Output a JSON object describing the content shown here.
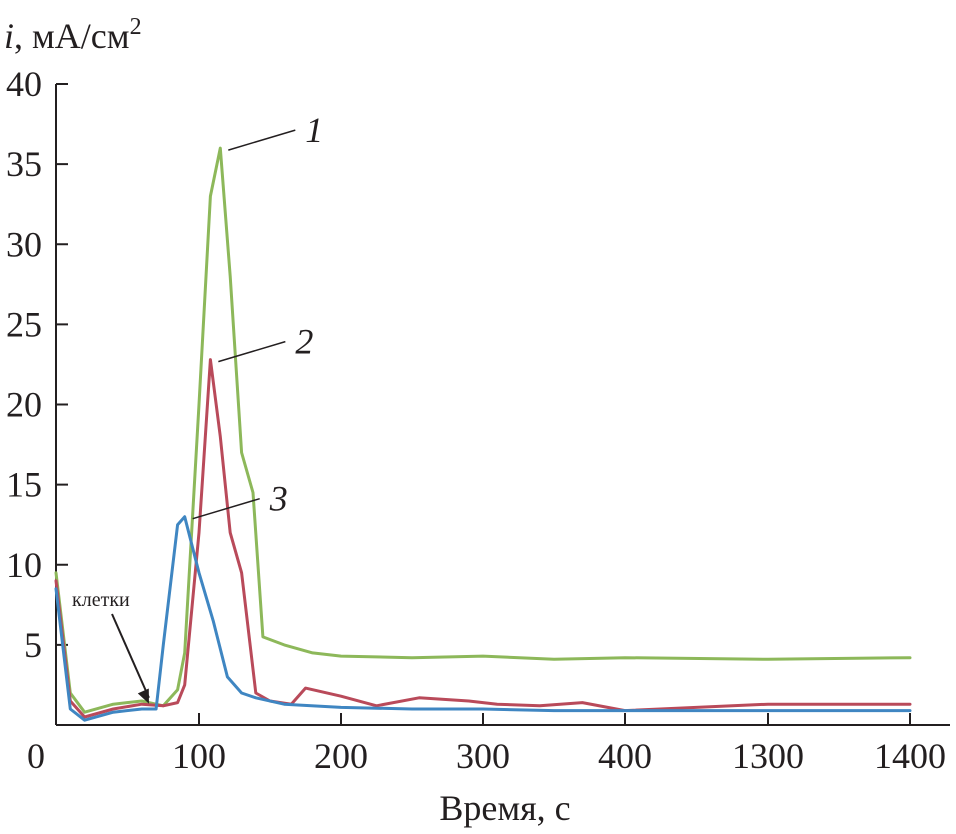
{
  "chart_data": {
    "type": "line",
    "ylabel_italic": "i",
    "ylabel_rest": ", мА/см",
    "ylabel_sup": "2",
    "xlabel": "Время, с",
    "ylim": [
      0,
      40
    ],
    "y_ticks": [
      "5",
      "10",
      "15",
      "20",
      "25",
      "30",
      "35",
      "40"
    ],
    "x_origin_label": "0",
    "x_ticks": [
      "100",
      "200",
      "300",
      "400",
      "1300",
      "1400"
    ],
    "x_categories": [
      0,
      100,
      200,
      300,
      400,
      1300,
      1400
    ],
    "grid": false,
    "series": [
      {
        "name": "1",
        "color": "#8db85a",
        "x": [
          0,
          10,
          20,
          40,
          60,
          75,
          85,
          90,
          100,
          108,
          115,
          122,
          130,
          138,
          145,
          160,
          180,
          200,
          250,
          300,
          350,
          400,
          1300,
          1400
        ],
        "values": [
          9.5,
          2.0,
          0.8,
          1.3,
          1.5,
          1.2,
          2.2,
          4.5,
          20,
          33,
          36,
          28,
          17,
          14.5,
          5.5,
          5.0,
          4.5,
          4.3,
          4.2,
          4.3,
          4.1,
          4.2,
          4.1,
          4.2
        ]
      },
      {
        "name": "2",
        "color": "#b94a5a",
        "x": [
          0,
          10,
          20,
          40,
          60,
          75,
          85,
          90,
          100,
          108,
          115,
          122,
          130,
          140,
          150,
          165,
          175,
          200,
          225,
          255,
          290,
          310,
          340,
          370,
          400,
          1300,
          1400
        ],
        "values": [
          9.0,
          1.5,
          0.5,
          1.0,
          1.3,
          1.2,
          1.4,
          2.5,
          12,
          22.8,
          18,
          12,
          9.5,
          2.0,
          1.5,
          1.3,
          2.3,
          1.8,
          1.2,
          1.7,
          1.5,
          1.3,
          1.2,
          1.4,
          0.9,
          1.3,
          1.3
        ]
      },
      {
        "name": "3",
        "color": "#3f86c2",
        "x": [
          0,
          10,
          20,
          40,
          60,
          70,
          75,
          85,
          90,
          100,
          110,
          120,
          130,
          140,
          160,
          200,
          250,
          300,
          350,
          400,
          1300,
          1400
        ],
        "values": [
          8.5,
          1.0,
          0.3,
          0.8,
          1.0,
          1.0,
          5.0,
          12.5,
          13.0,
          9.5,
          6.5,
          3.0,
          2.0,
          1.7,
          1.3,
          1.1,
          1.0,
          1.0,
          0.9,
          0.9,
          0.9,
          0.9
        ]
      }
    ],
    "annotations": [
      {
        "text": "клетки",
        "target_x": 65,
        "target_y": 1.2
      }
    ]
  }
}
